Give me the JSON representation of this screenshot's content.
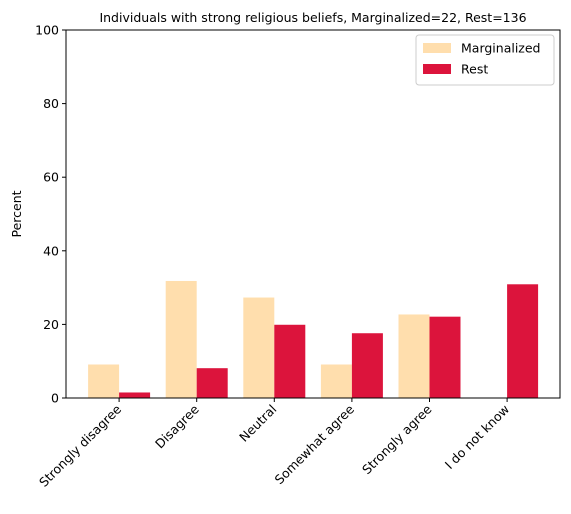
{
  "chart_data": {
    "type": "bar",
    "title": "Individuals with strong religious beliefs, Marginalized=22, Rest=136",
    "xlabel": "",
    "ylabel": "Percent",
    "ylim": [
      0,
      100
    ],
    "yticks": [
      "0",
      "20",
      "40",
      "60",
      "80",
      "100"
    ],
    "grid": false,
    "legend_position": "top-right",
    "categories": [
      "Strongly disagree",
      "Disagree",
      "Neutral",
      "Somewhat agree",
      "Strongly agree",
      "I do not know"
    ],
    "series": [
      {
        "name": "Marginalized",
        "color": "#ffdead",
        "values": [
          9.1,
          31.8,
          27.3,
          9.1,
          22.7,
          0
        ]
      },
      {
        "name": "Rest",
        "color": "#dc143c",
        "values": [
          1.5,
          8.1,
          19.9,
          17.6,
          22.1,
          30.9
        ]
      }
    ]
  }
}
